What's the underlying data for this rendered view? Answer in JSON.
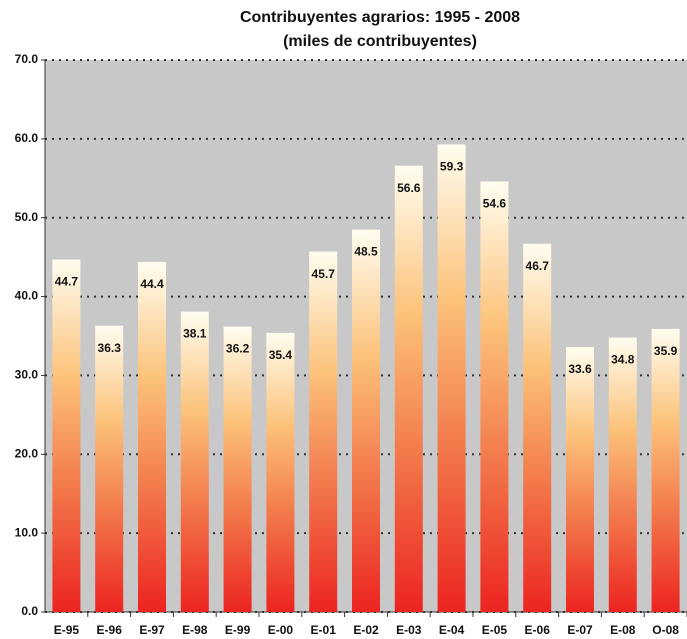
{
  "chart_data": {
    "type": "bar",
    "title": "Contribuyentes agrarios: 1995 - 2008",
    "subtitle": "(miles de contribuyentes)",
    "categories": [
      "E-95",
      "E-96",
      "E-97",
      "E-98",
      "E-99",
      "E-00",
      "E-01",
      "E-02",
      "E-03",
      "E-04",
      "E-05",
      "E-06",
      "E-07",
      "E-08",
      "O-08"
    ],
    "values": [
      44.7,
      36.3,
      44.4,
      38.1,
      36.2,
      35.4,
      45.7,
      48.5,
      56.6,
      59.3,
      54.6,
      46.7,
      33.6,
      34.8,
      35.9
    ],
    "gradient": [
      "#fffdf0",
      "#fcc27a",
      "#f27448",
      "#ec2420"
    ],
    "ylim": [
      0,
      70
    ],
    "yticks": [
      {
        "value": 0,
        "label": "0.0"
      },
      {
        "value": 10,
        "label": "10.0"
      },
      {
        "value": 20,
        "label": "20.0"
      },
      {
        "value": 30,
        "label": "30.0"
      },
      {
        "value": 40,
        "label": "40.0"
      },
      {
        "value": 50,
        "label": "50.0"
      },
      {
        "value": 60,
        "label": "60.0"
      },
      {
        "value": 70,
        "label": "70.0"
      }
    ],
    "grid": true
  }
}
